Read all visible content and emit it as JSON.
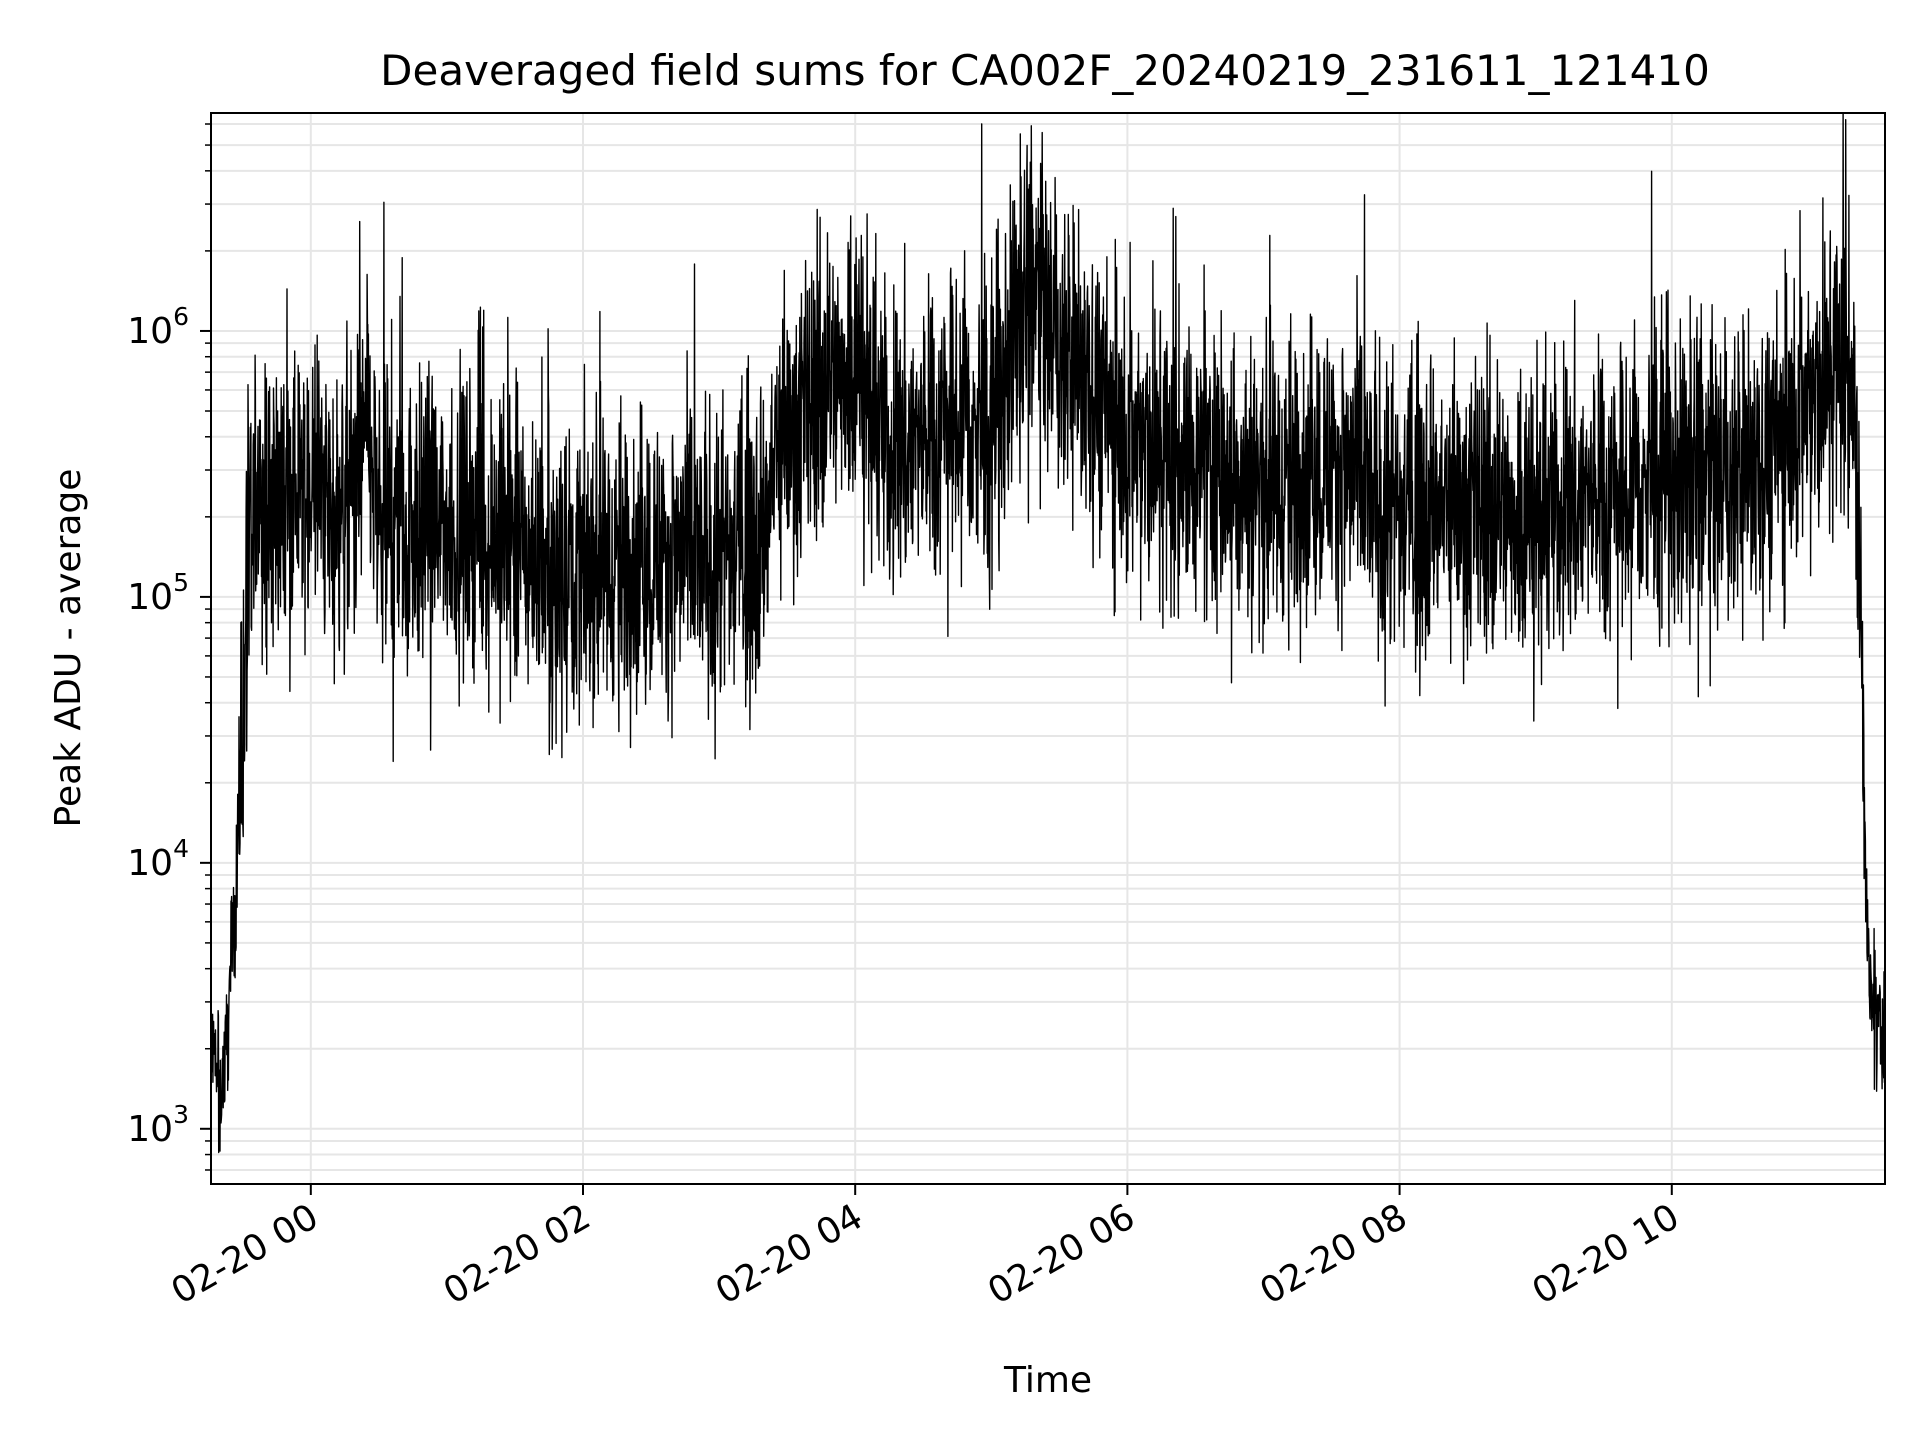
{
  "chart_data": {
    "type": "line",
    "title": "Deaveraged field sums for CA002F_20240219_231611_121410",
    "xlabel": "Time",
    "ylabel": "Peak ADU - average",
    "y_scale": "log",
    "ylim": [
      620,
      6600000
    ],
    "xlim": [
      "2024-02-19 23:16",
      "2024-02-20 11:34"
    ],
    "x_ticks": [
      {
        "label": "02-20 00",
        "value": "2024-02-20 00:00"
      },
      {
        "label": "02-20 02",
        "value": "2024-02-20 02:00"
      },
      {
        "label": "02-20 04",
        "value": "2024-02-20 04:00"
      },
      {
        "label": "02-20 06",
        "value": "2024-02-20 06:00"
      },
      {
        "label": "02-20 08",
        "value": "2024-02-20 08:00"
      },
      {
        "label": "02-20 10",
        "value": "2024-02-20 10:00"
      }
    ],
    "y_ticks": [
      {
        "base": "10",
        "exp": "3",
        "value": 1000
      },
      {
        "base": "10",
        "exp": "4",
        "value": 10000
      },
      {
        "base": "10",
        "exp": "5",
        "value": 100000
      },
      {
        "base": "10",
        "exp": "6",
        "value": 1000000
      }
    ],
    "grid": true,
    "line_color": "#000000",
    "grid_color": "#e6e6e6",
    "series": [
      {
        "points": [
          [
            "2024-02-19 23:16",
            2000
          ],
          [
            "2024-02-19 23:20",
            1300
          ],
          [
            "2024-02-19 23:23",
            2200
          ],
          [
            "2024-02-19 23:27",
            8000
          ],
          [
            "2024-02-19 23:30",
            40000
          ],
          [
            "2024-02-19 23:33",
            110000
          ],
          [
            "2024-02-19 23:36",
            220000
          ],
          [
            "2024-02-19 23:45",
            240000
          ],
          [
            "2024-02-20 00:00",
            260000
          ],
          [
            "2024-02-20 00:15",
            200000
          ],
          [
            "2024-02-20 00:25",
            420000
          ],
          [
            "2024-02-20 00:30",
            180000
          ],
          [
            "2024-02-20 00:45",
            200000
          ],
          [
            "2024-02-20 01:00",
            180000
          ],
          [
            "2024-02-20 01:15",
            190000
          ],
          [
            "2024-02-20 01:30",
            150000
          ],
          [
            "2024-02-20 02:00",
            130000
          ],
          [
            "2024-02-20 02:30",
            140000
          ],
          [
            "2024-02-20 03:00",
            140000
          ],
          [
            "2024-02-20 03:20",
            160000
          ],
          [
            "2024-02-20 03:25",
            350000
          ],
          [
            "2024-02-20 03:45",
            600000
          ],
          [
            "2024-02-20 04:00",
            800000
          ],
          [
            "2024-02-20 04:15",
            350000
          ],
          [
            "2024-02-20 04:30",
            400000
          ],
          [
            "2024-02-20 04:45",
            500000
          ],
          [
            "2024-02-20 05:00",
            350000
          ],
          [
            "2024-02-20 05:10",
            1000000
          ],
          [
            "2024-02-20 05:20",
            1400000
          ],
          [
            "2024-02-20 05:30",
            900000
          ],
          [
            "2024-02-20 05:45",
            650000
          ],
          [
            "2024-02-20 06:00",
            350000
          ],
          [
            "2024-02-20 06:30",
            330000
          ],
          [
            "2024-02-20 07:00",
            250000
          ],
          [
            "2024-02-20 07:30",
            320000
          ],
          [
            "2024-02-20 08:00",
            200000
          ],
          [
            "2024-02-20 08:30",
            220000
          ],
          [
            "2024-02-20 09:00",
            200000
          ],
          [
            "2024-02-20 09:30",
            250000
          ],
          [
            "2024-02-20 10:00",
            260000
          ],
          [
            "2024-02-20 10:30",
            300000
          ],
          [
            "2024-02-20 10:50",
            400000
          ],
          [
            "2024-02-20 11:05",
            550000
          ],
          [
            "2024-02-20 11:15",
            850000
          ],
          [
            "2024-02-20 11:20",
            650000
          ],
          [
            "2024-02-20 11:24",
            60000
          ],
          [
            "2024-02-20 11:26",
            6000
          ],
          [
            "2024-02-20 11:28",
            2700
          ],
          [
            "2024-02-20 11:34",
            2300
          ]
        ]
      }
    ]
  }
}
